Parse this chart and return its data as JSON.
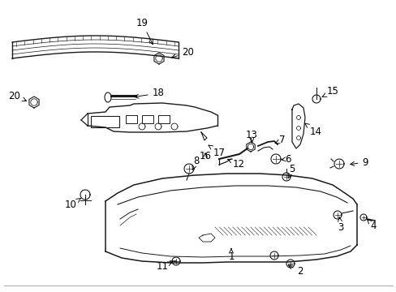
{
  "bg_color": "#ffffff",
  "fig_width": 4.89,
  "fig_height": 3.6,
  "dpi": 100,
  "line_color": "#1a1a1a",
  "text_color": "#000000",
  "font_size": 8.5
}
